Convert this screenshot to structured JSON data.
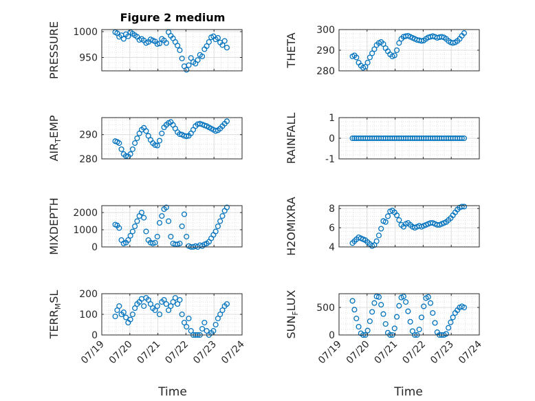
{
  "figure": {
    "title": "Figure 2 medium",
    "xlabel": "Time",
    "xtick_labels": [
      "07/19",
      "07/20",
      "07/21",
      "07/22",
      "07/23",
      "07/24"
    ]
  },
  "chart_data": [
    {
      "type": "scatter",
      "title": "Figure 2 medium",
      "ylabel": "PRESSURE",
      "ylim": [
        924,
        1004
      ],
      "yticks": [
        950,
        1000
      ],
      "xlim": [
        0,
        5
      ],
      "xtick_labels": [
        "07/19",
        "07/20",
        "07/21",
        "07/22",
        "07/23",
        "07/24"
      ],
      "grid": true,
      "x": [
        0.48,
        0.55,
        0.62,
        0.7,
        0.78,
        0.86,
        0.94,
        1.02,
        1.1,
        1.18,
        1.26,
        1.34,
        1.42,
        1.5,
        1.58,
        1.66,
        1.74,
        1.82,
        1.9,
        1.98,
        2.06,
        2.14,
        2.22,
        2.3,
        2.38,
        2.46,
        2.54,
        2.62,
        2.7,
        2.78,
        2.86,
        2.94,
        3.02,
        3.1,
        3.18,
        3.26,
        3.34,
        3.42,
        3.5,
        3.58,
        3.66,
        3.74,
        3.82,
        3.9,
        3.98,
        4.06,
        4.14,
        4.22,
        4.3,
        4.38,
        4.46
      ],
      "y": [
        999,
        997,
        990,
        993,
        986,
        995,
        991,
        999,
        996,
        993,
        990,
        984,
        986,
        983,
        978,
        980,
        985,
        983,
        981,
        976,
        977,
        986,
        983,
        978,
        999,
        992,
        987,
        980,
        973,
        964,
        948,
        933,
        926,
        935,
        949,
        941,
        938,
        945,
        955,
        952,
        966,
        972,
        980,
        989,
        991,
        985,
        988,
        979,
        974,
        982,
        969
      ]
    },
    {
      "type": "scatter",
      "ylabel": "THETA",
      "ylim": [
        280,
        300
      ],
      "yticks": [
        280,
        290,
        300
      ],
      "xlim": [
        0,
        5
      ],
      "xtick_labels": [
        "07/19",
        "07/20",
        "07/21",
        "07/22",
        "07/23",
        "07/24"
      ],
      "grid": true,
      "x": [
        0.48,
        0.55,
        0.62,
        0.7,
        0.78,
        0.86,
        0.94,
        1.02,
        1.1,
        1.18,
        1.26,
        1.34,
        1.42,
        1.5,
        1.58,
        1.66,
        1.74,
        1.82,
        1.9,
        1.98,
        2.06,
        2.14,
        2.22,
        2.3,
        2.38,
        2.46,
        2.54,
        2.62,
        2.7,
        2.78,
        2.86,
        2.94,
        3.02,
        3.1,
        3.18,
        3.26,
        3.34,
        3.42,
        3.5,
        3.58,
        3.66,
        3.74,
        3.82,
        3.9,
        3.98,
        4.06,
        4.14,
        4.22,
        4.3,
        4.38,
        4.46
      ],
      "y": [
        287,
        287.5,
        286.5,
        284,
        282.5,
        281.5,
        282,
        284,
        286.5,
        288.5,
        290.5,
        292.5,
        293.5,
        294,
        293,
        291,
        289.5,
        288,
        287,
        287.5,
        290,
        293.5,
        295.5,
        296.5,
        296.8,
        297,
        296.5,
        296,
        295.5,
        295,
        294.8,
        294.5,
        294.7,
        295.5,
        296.2,
        296.5,
        296.8,
        296.5,
        296,
        296.3,
        296.5,
        296.2,
        295.5,
        294.5,
        293.8,
        293.5,
        293.8,
        294.5,
        295.5,
        297,
        298.3
      ]
    },
    {
      "type": "scatter",
      "ylabel": "AIR_TEMP",
      "ylim": [
        280,
        297
      ],
      "yticks": [
        280,
        290
      ],
      "xlim": [
        0,
        5
      ],
      "xtick_labels": [
        "07/19",
        "07/20",
        "07/21",
        "07/22",
        "07/23",
        "07/24"
      ],
      "grid": true,
      "x": [
        0.48,
        0.55,
        0.62,
        0.7,
        0.78,
        0.86,
        0.94,
        1.02,
        1.1,
        1.18,
        1.26,
        1.34,
        1.42,
        1.5,
        1.58,
        1.66,
        1.74,
        1.82,
        1.9,
        1.98,
        2.06,
        2.14,
        2.22,
        2.3,
        2.38,
        2.46,
        2.54,
        2.62,
        2.7,
        2.78,
        2.86,
        2.94,
        3.02,
        3.1,
        3.18,
        3.26,
        3.34,
        3.42,
        3.5,
        3.58,
        3.66,
        3.74,
        3.82,
        3.9,
        3.98,
        4.06,
        4.14,
        4.22,
        4.3,
        4.38,
        4.46
      ],
      "y": [
        287.3,
        287,
        286.5,
        284,
        282,
        281.2,
        281,
        282,
        284,
        286.5,
        288.5,
        290.5,
        292,
        292.8,
        291.5,
        289.5,
        287.8,
        286.5,
        285.7,
        285.5,
        287.5,
        290.5,
        293,
        294,
        294.8,
        295.2,
        294,
        292.5,
        291,
        290.2,
        290,
        289.5,
        289.3,
        289.5,
        290.5,
        292,
        293.5,
        294.3,
        294.5,
        294.2,
        293.8,
        293.5,
        293,
        292.5,
        292,
        291.5,
        291.8,
        292.5,
        293.5,
        294.5,
        295.5
      ]
    },
    {
      "type": "scatter",
      "ylabel": "RAINFALL",
      "ylim": [
        -1,
        1
      ],
      "yticks": [
        -1,
        0,
        1
      ],
      "xlim": [
        0,
        5
      ],
      "xtick_labels": [
        "07/19",
        "07/20",
        "07/21",
        "07/22",
        "07/23",
        "07/24"
      ],
      "grid": true,
      "x": [
        0.48,
        0.55,
        0.62,
        0.7,
        0.78,
        0.86,
        0.94,
        1.02,
        1.1,
        1.18,
        1.26,
        1.34,
        1.42,
        1.5,
        1.58,
        1.66,
        1.74,
        1.82,
        1.9,
        1.98,
        2.06,
        2.14,
        2.22,
        2.3,
        2.38,
        2.46,
        2.54,
        2.62,
        2.7,
        2.78,
        2.86,
        2.94,
        3.02,
        3.1,
        3.18,
        3.26,
        3.34,
        3.42,
        3.5,
        3.58,
        3.66,
        3.74,
        3.82,
        3.9,
        3.98,
        4.06,
        4.14,
        4.22,
        4.3,
        4.38,
        4.46
      ],
      "y": [
        0,
        0,
        0,
        0,
        0,
        0,
        0,
        0,
        0,
        0,
        0,
        0,
        0,
        0,
        0,
        0,
        0,
        0,
        0,
        0,
        0,
        0,
        0,
        0,
        0,
        0,
        0,
        0,
        0,
        0,
        0,
        0,
        0,
        0,
        0,
        0,
        0,
        0,
        0,
        0,
        0,
        0,
        0,
        0,
        0,
        0,
        0,
        0,
        0,
        0,
        0
      ]
    },
    {
      "type": "scatter",
      "ylabel": "MIXDEPTH",
      "ylim": [
        0,
        2400
      ],
      "yticks": [
        0,
        1000,
        2000
      ],
      "xlim": [
        0,
        5
      ],
      "xtick_labels": [
        "07/19",
        "07/20",
        "07/21",
        "07/22",
        "07/23",
        "07/24"
      ],
      "grid": true,
      "x": [
        0.48,
        0.55,
        0.62,
        0.7,
        0.78,
        0.86,
        0.94,
        1.02,
        1.1,
        1.18,
        1.26,
        1.34,
        1.42,
        1.5,
        1.58,
        1.66,
        1.74,
        1.82,
        1.9,
        1.98,
        2.06,
        2.14,
        2.22,
        2.3,
        2.38,
        2.46,
        2.54,
        2.62,
        2.7,
        2.78,
        2.86,
        2.94,
        3.02,
        3.1,
        3.18,
        3.26,
        3.34,
        3.42,
        3.5,
        3.58,
        3.66,
        3.74,
        3.82,
        3.9,
        3.98,
        4.06,
        4.14,
        4.22,
        4.3,
        4.38,
        4.46
      ],
      "y": [
        1300,
        1250,
        1100,
        400,
        200,
        250,
        400,
        650,
        900,
        1200,
        1500,
        1800,
        2000,
        1700,
        900,
        400,
        250,
        200,
        250,
        600,
        1400,
        1800,
        2200,
        2300,
        1500,
        600,
        200,
        150,
        150,
        200,
        1200,
        1900,
        600,
        50,
        0,
        0,
        50,
        0,
        100,
        50,
        150,
        200,
        300,
        500,
        700,
        900,
        1200,
        1500,
        1800,
        2100,
        2300
      ]
    },
    {
      "type": "scatter",
      "ylabel": "H2OMIXRA",
      "ylim": [
        4,
        8.3
      ],
      "yticks": [
        4,
        6,
        8
      ],
      "xlim": [
        0,
        5
      ],
      "xtick_labels": [
        "07/19",
        "07/20",
        "07/21",
        "07/22",
        "07/23",
        "07/24"
      ],
      "grid": true,
      "x": [
        0.48,
        0.55,
        0.62,
        0.7,
        0.78,
        0.86,
        0.94,
        1.02,
        1.1,
        1.18,
        1.26,
        1.34,
        1.42,
        1.5,
        1.58,
        1.66,
        1.74,
        1.82,
        1.9,
        1.98,
        2.06,
        2.14,
        2.22,
        2.3,
        2.38,
        2.46,
        2.54,
        2.62,
        2.7,
        2.78,
        2.86,
        2.94,
        3.02,
        3.1,
        3.18,
        3.26,
        3.34,
        3.42,
        3.5,
        3.58,
        3.66,
        3.74,
        3.82,
        3.9,
        3.98,
        4.06,
        4.14,
        4.22,
        4.3,
        4.38,
        4.46
      ],
      "y": [
        4.4,
        4.6,
        4.8,
        5,
        4.9,
        4.8,
        4.7,
        4.5,
        4.3,
        4.1,
        4.2,
        4.6,
        5.2,
        5.9,
        6.7,
        6.6,
        7.2,
        7.7,
        7.8,
        7.6,
        7.3,
        6.8,
        6.3,
        6.1,
        6.4,
        6.5,
        6.3,
        6.1,
        6,
        6.1,
        6.2,
        6.1,
        6.2,
        6.3,
        6.4,
        6.5,
        6.5,
        6.4,
        6.3,
        6.3,
        6.4,
        6.5,
        6.6,
        6.8,
        7,
        7.3,
        7.6,
        7.9,
        8.1,
        8.2,
        8.2
      ]
    },
    {
      "type": "scatter",
      "ylabel": "TERR_MSL",
      "ylim": [
        0,
        200
      ],
      "yticks": [
        0,
        100,
        200
      ],
      "xlim": [
        0,
        5
      ],
      "xtick_labels": [
        "07/19",
        "07/20",
        "07/21",
        "07/22",
        "07/23",
        "07/24"
      ],
      "grid": true,
      "x": [
        0.48,
        0.55,
        0.62,
        0.7,
        0.78,
        0.86,
        0.94,
        1.02,
        1.1,
        1.18,
        1.26,
        1.34,
        1.42,
        1.5,
        1.58,
        1.66,
        1.74,
        1.82,
        1.9,
        1.98,
        2.06,
        2.14,
        2.22,
        2.3,
        2.38,
        2.46,
        2.54,
        2.62,
        2.7,
        2.78,
        2.86,
        2.94,
        3.02,
        3.1,
        3.18,
        3.26,
        3.34,
        3.42,
        3.5,
        3.58,
        3.66,
        3.74,
        3.82,
        3.9,
        3.98,
        4.06,
        4.14,
        4.22,
        4.3,
        4.38,
        4.46
      ],
      "y": [
        90,
        120,
        140,
        100,
        110,
        85,
        60,
        75,
        100,
        130,
        150,
        160,
        175,
        140,
        180,
        170,
        150,
        130,
        120,
        140,
        100,
        160,
        170,
        150,
        120,
        140,
        160,
        180,
        150,
        170,
        100,
        60,
        40,
        80,
        20,
        0,
        0,
        0,
        0,
        30,
        60,
        20,
        0,
        10,
        20,
        50,
        80,
        100,
        120,
        140,
        150
      ]
    },
    {
      "type": "scatter",
      "ylabel": "SUN_FLUX",
      "ylim": [
        0,
        750
      ],
      "yticks": [
        0,
        500
      ],
      "xlim": [
        0,
        5
      ],
      "xtick_labels": [
        "07/19",
        "07/20",
        "07/21",
        "07/22",
        "07/23",
        "07/24"
      ],
      "grid": true,
      "x": [
        0.48,
        0.55,
        0.62,
        0.7,
        0.78,
        0.86,
        0.94,
        1.02,
        1.1,
        1.18,
        1.26,
        1.34,
        1.42,
        1.5,
        1.58,
        1.66,
        1.74,
        1.82,
        1.9,
        1.98,
        2.06,
        2.14,
        2.22,
        2.3,
        2.38,
        2.46,
        2.54,
        2.62,
        2.7,
        2.78,
        2.86,
        2.94,
        3.02,
        3.1,
        3.18,
        3.26,
        3.34,
        3.42,
        3.5,
        3.58,
        3.66,
        3.74,
        3.82,
        3.9,
        3.98,
        4.06,
        4.14,
        4.22,
        4.3,
        4.38,
        4.46
      ],
      "y": [
        620,
        460,
        300,
        150,
        30,
        0,
        0,
        80,
        250,
        420,
        580,
        700,
        690,
        550,
        380,
        200,
        40,
        0,
        0,
        120,
        330,
        530,
        680,
        700,
        600,
        430,
        240,
        70,
        0,
        0,
        100,
        320,
        520,
        670,
        690,
        580,
        400,
        220,
        50,
        0,
        0,
        0,
        20,
        130,
        230,
        320,
        400,
        450,
        500,
        520,
        500
      ]
    }
  ]
}
